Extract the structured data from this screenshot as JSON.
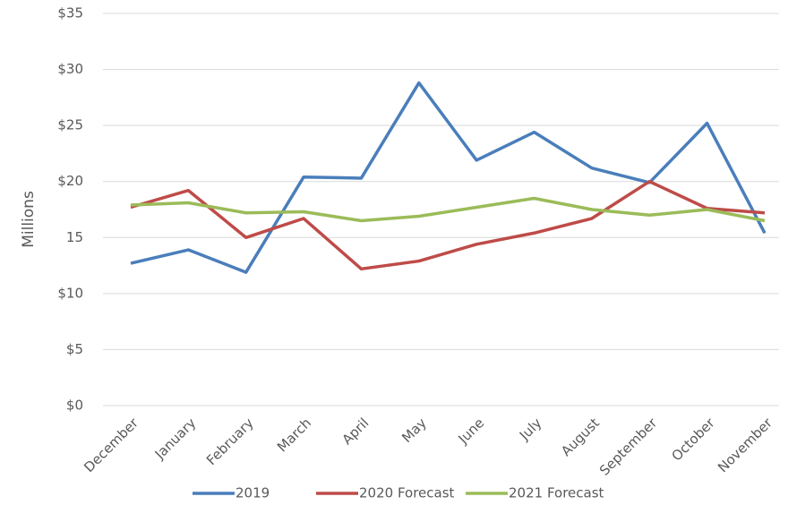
{
  "chart_data": {
    "type": "line",
    "y_label": "Millions",
    "categories": [
      "December",
      "January",
      "February",
      "March",
      "April",
      "May",
      "June",
      "July",
      "August",
      "September",
      "October",
      "November"
    ],
    "series": [
      {
        "name": "2019",
        "color": "#4a7ebb",
        "values": [
          12.7,
          13.9,
          11.9,
          20.4,
          20.3,
          28.8,
          21.9,
          24.4,
          21.2,
          19.9,
          25.2,
          15.4
        ]
      },
      {
        "name": "2020 Forecast",
        "color": "#be4b48",
        "values": [
          17.7,
          19.2,
          15.0,
          16.7,
          12.2,
          12.9,
          14.4,
          15.4,
          16.7,
          20.0,
          17.6,
          17.2
        ]
      },
      {
        "name": "2021 Forecast",
        "color": "#9bbb59",
        "values": [
          17.9,
          18.1,
          17.2,
          17.3,
          16.5,
          16.9,
          17.7,
          18.5,
          17.5,
          17.0,
          17.5,
          16.5
        ]
      }
    ],
    "ylim": [
      0,
      35
    ],
    "yticks": [
      {
        "value": 0,
        "label": "$0"
      },
      {
        "value": 5,
        "label": "$5"
      },
      {
        "value": 10,
        "label": "$10"
      },
      15,
      {
        "value": 20,
        "label": "$20"
      },
      {
        "value": 25,
        "label": "$25"
      },
      {
        "value": 30,
        "label": "$30"
      },
      {
        "value": 35,
        "label": "$35"
      }
    ],
    "grid": true,
    "legend": "bottom"
  }
}
